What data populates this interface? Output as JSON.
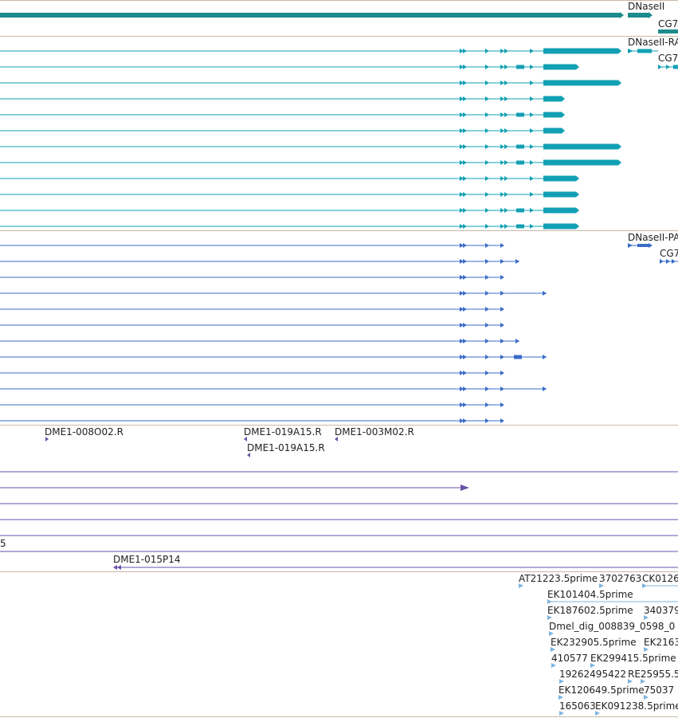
{
  "colors": {
    "gene": "#1c8c8c",
    "mrna_flybase": "#12a0b4",
    "mrna_other": "#3a6cc8",
    "clone": "#6a52a8",
    "est": "#7cb4e0",
    "separator": "#c8b8a8"
  },
  "tracks": {
    "gene_track": {
      "labels": [
        "DNaseII",
        "CG7"
      ]
    },
    "flybase_transcripts": {
      "labels": [
        "DNaseII-RA",
        "CG7"
      ],
      "row_count": 12
    },
    "other_transcripts": {
      "labels": [
        "DNaseII-PA",
        "CG7"
      ],
      "row_count": 12
    },
    "clone_track": {
      "labels": [
        "DME1-008O02.R",
        "DME1-019A15.R",
        "DME1-003M02.R",
        "DME1-019A15.R",
        "5",
        "DME1-015P14"
      ]
    },
    "est_track": {
      "labels": [
        "AT21223.5prime",
        "3702763",
        "CK0126",
        "EK101404.5prime",
        "EK187602.5prime",
        "340379",
        "Dmel_dig_008839_0598_0",
        "EK232905.5prime",
        "EK2163",
        "410577",
        "EK299415.5prime",
        "19262495422",
        "RE25955.5",
        "EK120649.5prime",
        "75037",
        "165063",
        "EK091238.5prime"
      ]
    }
  }
}
